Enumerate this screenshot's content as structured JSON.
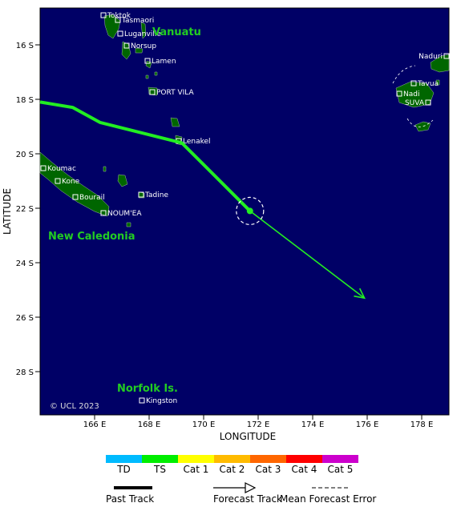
{
  "map": {
    "ylabel": "LATITUDE",
    "xlabel": "LONGITUDE",
    "ocean_color": "#000066",
    "land_color": "#006600",
    "x_ticks": [
      "166 E",
      "168 E",
      "170 E",
      "172 E",
      "174 E",
      "176 E",
      "178 E"
    ],
    "y_ticks": [
      "16 S",
      "18 S",
      "20 S",
      "22 S",
      "24 S",
      "26 S",
      "28 S"
    ],
    "copyright": "© UCL 2023",
    "regions": [
      {
        "name": "Vanuatu",
        "text": "Vanuatu"
      },
      {
        "name": "new-caledonia",
        "text": "New Caledonia"
      },
      {
        "name": "norfolk",
        "text": "Norfolk Is."
      }
    ],
    "places": [
      "Toktok",
      "Tasmaori",
      "Luganville",
      "Norsup",
      "Lamen",
      "PORT VILA",
      "Lenakel",
      "Koumac",
      "Kone",
      "Bourail",
      "Tadine",
      "NOUM'EA",
      "Kingston",
      "Naduri",
      "Tavua",
      "Nadi",
      "SUVA"
    ]
  },
  "track": {
    "past_color": "#22ee22",
    "forecast_color": "#22ee22",
    "past_points_deg": [
      [
        164.0,
        18.1
      ],
      [
        165.2,
        18.3
      ],
      [
        166.2,
        18.85
      ],
      [
        169.2,
        19.6
      ],
      [
        171.7,
        22.1
      ]
    ],
    "forecast_points_deg": [
      [
        171.7,
        22.1
      ],
      [
        175.9,
        25.3
      ]
    ],
    "current_position_deg": [
      171.7,
      22.1
    ]
  },
  "legend": {
    "categories": [
      {
        "label": "TD",
        "color": "#00bbff"
      },
      {
        "label": "TS",
        "color": "#00ee00"
      },
      {
        "label": "Cat 1",
        "color": "#ffff00"
      },
      {
        "label": "Cat 2",
        "color": "#ffbb00"
      },
      {
        "label": "Cat 3",
        "color": "#ff6600"
      },
      {
        "label": "Cat 4",
        "color": "#ff0000"
      },
      {
        "label": "Cat 5",
        "color": "#cc00cc"
      }
    ],
    "past_track": "Past Track",
    "forecast_track": "Forecast Track",
    "mean_error": "Mean Forecast Error"
  }
}
